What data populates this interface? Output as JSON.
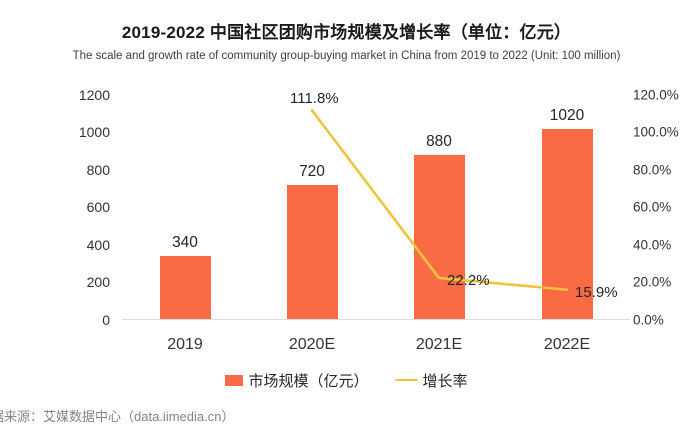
{
  "title": "2019-2022 中国社区团购市场规模及增长率（单位：亿元）",
  "subtitle": "The scale and growth rate of community group-buying market in China from 2019 to 2022 (Unit: 100 million)",
  "source": {
    "partial_prefix": "据",
    "text": "来源：艾媒数据中心（data.iimedia.cn）"
  },
  "colors": {
    "bar": "#f96b45",
    "line": "#eec33e",
    "axis_line": "#dedede"
  },
  "legend": [
    {
      "label": "市场规模（亿元）",
      "type": "bar"
    },
    {
      "label": "增长率",
      "type": "line"
    }
  ],
  "chart_data": {
    "type": "bar+line combo",
    "title": "2019-2022 中国社区团购市场规模及增长率（单位：亿元）",
    "subtitle": "The scale and growth rate of community group-buying market in China from 2019 to 2022 (Unit: 100 million)",
    "categories": [
      "2019",
      "2020E",
      "2021E",
      "2022E"
    ],
    "series": [
      {
        "name": "市场规模（亿元）",
        "type": "bar",
        "axis": "left",
        "values": [
          340,
          720,
          880,
          1020
        ],
        "labels": [
          "340",
          "720",
          "880",
          "1020"
        ],
        "color": "#f96b45"
      },
      {
        "name": "增长率",
        "type": "line",
        "axis": "right",
        "values": [
          null,
          111.8,
          22.2,
          15.9
        ],
        "labels": [
          null,
          "111.8%",
          "22.2%",
          "15.9%"
        ],
        "color": "#eec33e"
      }
    ],
    "left_axis": {
      "min": 0,
      "max": 1200,
      "ticks": [
        "1200",
        "1000",
        "800",
        "600",
        "400",
        "200",
        "0"
      ]
    },
    "right_axis": {
      "min": 0,
      "max": 120,
      "ticks": [
        "120.0%",
        "100.0%",
        "80.0%",
        "60.0%",
        "40.0%",
        "20.0%",
        "0.0%"
      ]
    },
    "grid": false,
    "legend_position": "bottom"
  }
}
